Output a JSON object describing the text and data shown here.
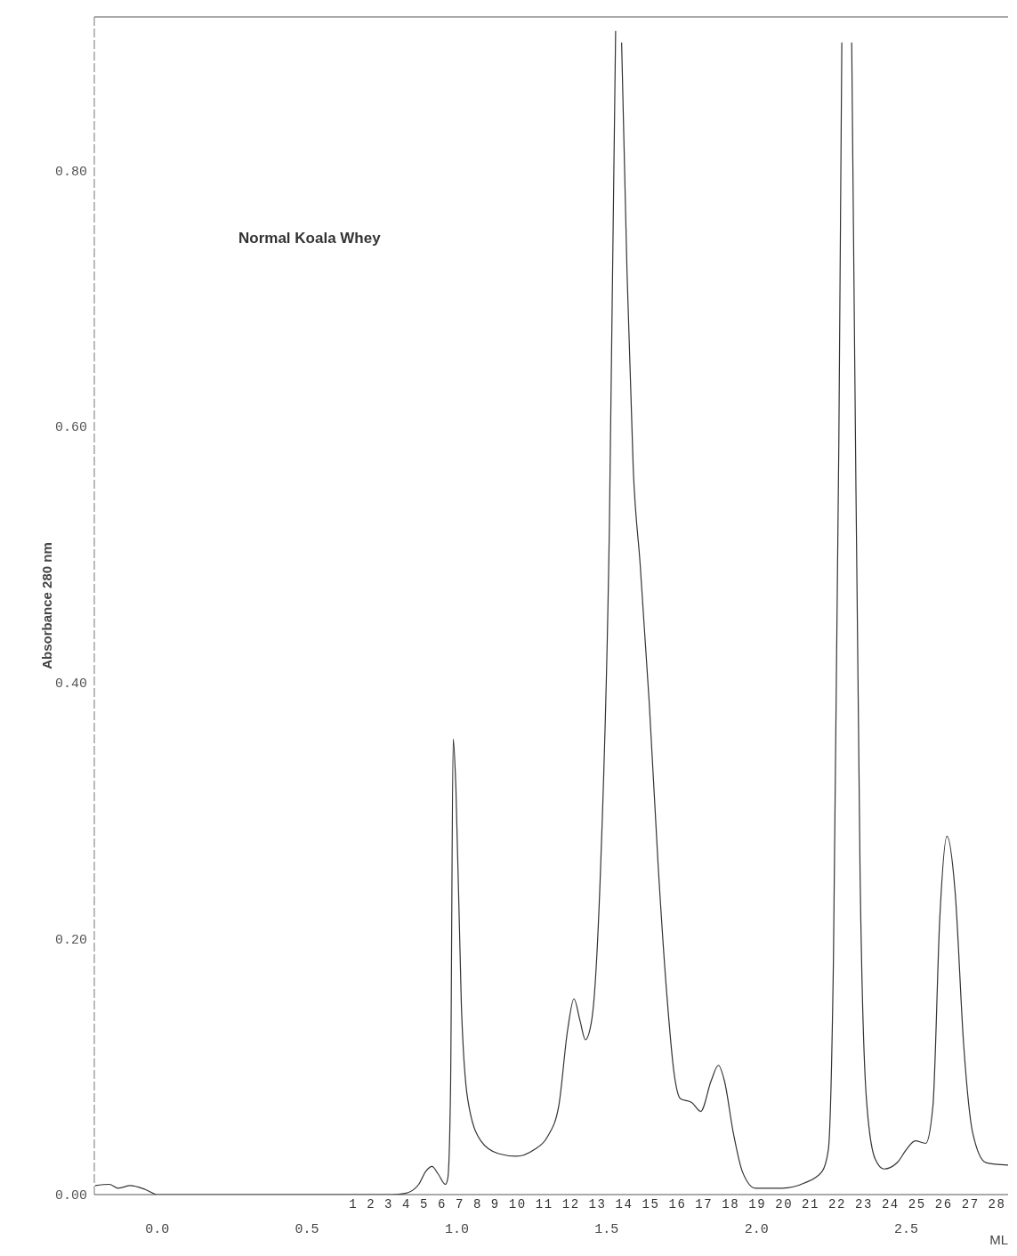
{
  "chart_data": {
    "type": "line",
    "title": "Normal Koala Whey",
    "xlabel": "ML",
    "ylabel": "Absorbance 280 nm",
    "xlim": [
      -0.21,
      2.84
    ],
    "ylim": [
      0,
      0.92
    ],
    "xticks": [
      {
        "value": 0,
        "label": "0.0"
      },
      {
        "value": 0.5,
        "label": "0.5"
      },
      {
        "value": 1,
        "label": "1.0"
      },
      {
        "value": 1.5,
        "label": "1.5"
      },
      {
        "value": 2,
        "label": "2.0"
      },
      {
        "value": 2.5,
        "label": "2.5"
      }
    ],
    "yticks": [
      {
        "value": 0,
        "label": "0.00"
      },
      {
        "value": 0.2,
        "label": "0.20"
      },
      {
        "value": 0.4,
        "label": "0.40"
      },
      {
        "value": 0.6,
        "label": "0.60"
      },
      {
        "value": 0.8,
        "label": "0.80"
      }
    ],
    "marker": "none",
    "line_style": "solid",
    "series": [
      {
        "color": "#333333",
        "x": [
          -0.207,
          -0.16,
          -0.13,
          -0.09,
          -0.04,
          0,
          0.5,
          0.784,
          0.828,
          0.873,
          0.896,
          0.917,
          0.938,
          0.962,
          0.97,
          0.979,
          0.988,
          0.997,
          1.015,
          1.036,
          1.08,
          1.139,
          1.198,
          1.257,
          1.302,
          1.34,
          1.37,
          1.391,
          1.411,
          1.429,
          1.45,
          1.479,
          1.509,
          1.53,
          1.54,
          1.55,
          1.568,
          1.589,
          1.612,
          1.642,
          1.672,
          1.701,
          1.725,
          1.746,
          1.784,
          1.814,
          1.849,
          1.873,
          1.893,
          1.923,
          1.953,
          1.997,
          2.086,
          2.16,
          2.219,
          2.24,
          2.257,
          2.275,
          2.285,
          2.3,
          2.318,
          2.328,
          2.346,
          2.367,
          2.396,
          2.426,
          2.47,
          2.5,
          2.53,
          2.565,
          2.589,
          2.612,
          2.636,
          2.663,
          2.692,
          2.722,
          2.766,
          2.84
        ],
        "values": [
          0.007,
          0.008,
          0.005,
          0.007,
          0.004,
          0,
          0,
          0,
          0.001,
          0.008,
          0.018,
          0.022,
          0.016,
          0.008,
          0.013,
          0.082,
          0.356,
          0.317,
          0.149,
          0.075,
          0.042,
          0.032,
          0.03,
          0.035,
          0.045,
          0.069,
          0.129,
          0.153,
          0.136,
          0.121,
          0.136,
          0.25,
          0.519,
          0.909,
          null,
          0.9,
          0.721,
          0.566,
          0.492,
          0.385,
          0.257,
          0.156,
          0.095,
          0.075,
          0.072,
          0.065,
          0.089,
          0.101,
          0.089,
          0.048,
          0.018,
          0.005,
          0.005,
          0.009,
          0.018,
          0.035,
          0.183,
          0.586,
          0.9,
          null,
          0.9,
          0.653,
          0.25,
          0.075,
          0.028,
          0.02,
          0.025,
          0.035,
          0.042,
          0.04,
          0.069,
          0.216,
          0.28,
          0.237,
          0.116,
          0.048,
          0.025,
          0.023
        ]
      }
    ],
    "annotations": [
      "1 2 3 4 5 6 7 8 9 10 11 12 13 14 15 16 17 18 19 20 21 22 23 24 25 26 27 28"
    ]
  }
}
